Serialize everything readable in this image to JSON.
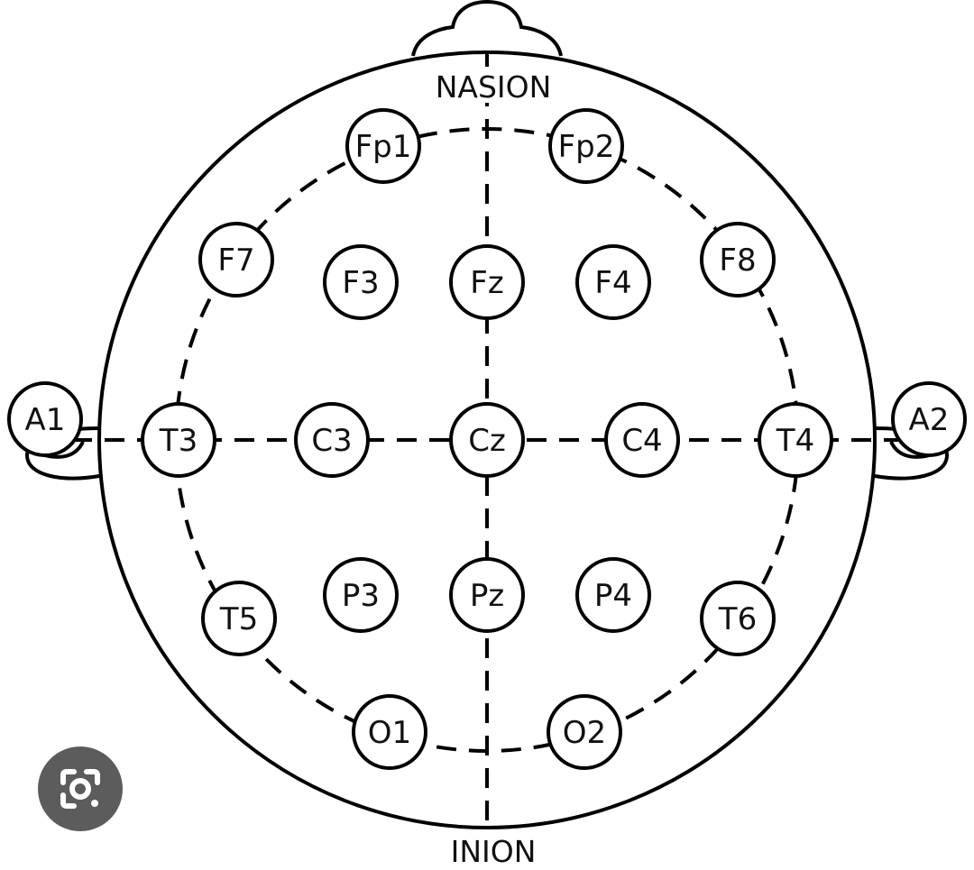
{
  "landmarks": {
    "top": "NASION",
    "bottom": "INION"
  },
  "electrodes": [
    {
      "id": "fp1",
      "label": "Fp1"
    },
    {
      "id": "fp2",
      "label": "Fp2"
    },
    {
      "id": "f7",
      "label": "F7"
    },
    {
      "id": "f3",
      "label": "F3"
    },
    {
      "id": "fz",
      "label": "Fz"
    },
    {
      "id": "f4",
      "label": "F4"
    },
    {
      "id": "f8",
      "label": "F8"
    },
    {
      "id": "a1",
      "label": "A1"
    },
    {
      "id": "t3",
      "label": "T3"
    },
    {
      "id": "c3",
      "label": "C3"
    },
    {
      "id": "cz",
      "label": "Cz"
    },
    {
      "id": "c4",
      "label": "C4"
    },
    {
      "id": "t4",
      "label": "T4"
    },
    {
      "id": "a2",
      "label": "A2"
    },
    {
      "id": "t5",
      "label": "T5"
    },
    {
      "id": "p3",
      "label": "P3"
    },
    {
      "id": "pz",
      "label": "Pz"
    },
    {
      "id": "p4",
      "label": "P4"
    },
    {
      "id": "t6",
      "label": "T6"
    },
    {
      "id": "o1",
      "label": "O1"
    },
    {
      "id": "o2",
      "label": "O2"
    }
  ],
  "icons": {
    "lens_button": "google-lens-icon"
  }
}
